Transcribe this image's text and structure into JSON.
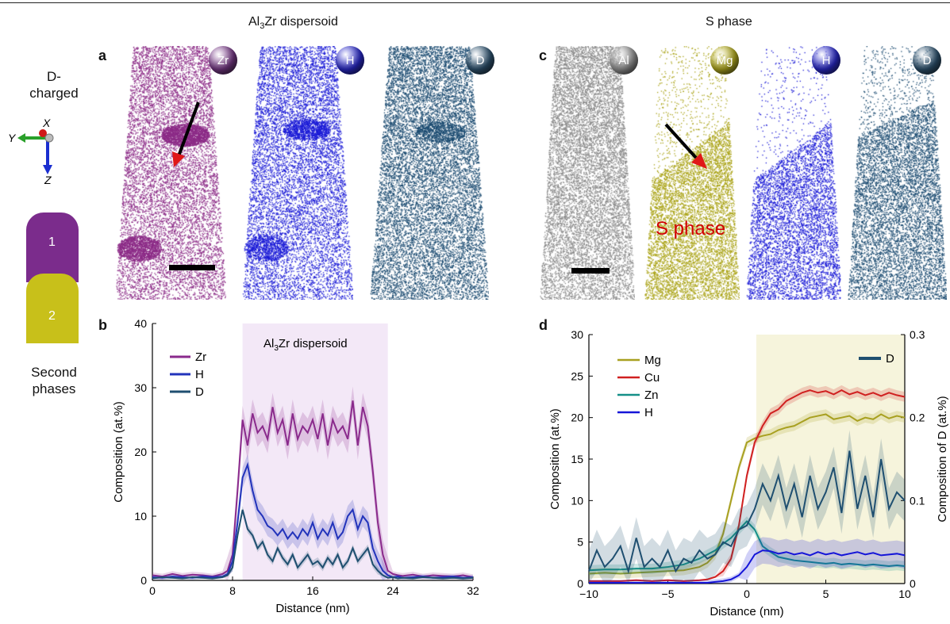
{
  "header": {
    "left_title_main": "Al",
    "left_title_sub": "3",
    "left_title_rest": "Zr dispersoid",
    "right_title": "S phase"
  },
  "panels": {
    "a": "a",
    "b": "b",
    "c": "c",
    "d": "d"
  },
  "sidebar": {
    "d_charged_line1": "D-",
    "d_charged_line2": "charged",
    "axis_x": "X",
    "axis_y": "Y",
    "axis_z": "Z",
    "tip1_label": "1",
    "tip2_label": "2",
    "second_phases_line1": "Second",
    "second_phases_line2": "phases",
    "tip1_color": "#7b2c8c",
    "tip2_color": "#c8c01a"
  },
  "element_badges": {
    "a": [
      "Zr",
      "H",
      "D"
    ],
    "c": [
      "Al",
      "Mg",
      "H",
      "D"
    ],
    "colors": {
      "Zr": "#7a3a8a",
      "H": "#2a2ad0",
      "D": "#2f5573",
      "Al": "#9a9a9a",
      "Mg": "#b8b020"
    }
  },
  "reconstruction_colors": {
    "Zr": "#8b2a86",
    "H": "#1a1ad6",
    "D": "#1a4a70",
    "Al": "#8a8a8a",
    "Mg": "#a9a215"
  },
  "s_phase_label": "S phase",
  "chart_data": [
    {
      "type": "line",
      "panel": "b",
      "annotation_main": "Al",
      "annotation_sub": "3",
      "annotation_rest": "Zr dispersoid",
      "shaded_region": [
        9,
        23.5
      ],
      "xlabel": "Distance (nm)",
      "ylabel": "Composition (at.%)",
      "xlim": [
        0,
        32
      ],
      "ylim": [
        0,
        40
      ],
      "xticks": [
        0,
        8,
        16,
        24,
        32
      ],
      "yticks": [
        0,
        10,
        20,
        30,
        40
      ],
      "legend_position": "top-left",
      "series": [
        {
          "name": "Zr",
          "color": "#8a2a8c",
          "x": [
            0,
            1,
            2,
            3,
            4,
            5,
            6,
            7,
            7.5,
            8,
            8.5,
            9,
            9.5,
            10,
            10.5,
            11,
            11.5,
            12,
            12.5,
            13,
            13.5,
            14,
            14.5,
            15,
            15.5,
            16,
            16.5,
            17,
            17.5,
            18,
            18.5,
            19,
            19.5,
            20,
            20.5,
            21,
            21.5,
            22,
            22.5,
            23,
            23.5,
            24,
            24.5,
            25,
            26,
            27,
            28,
            29,
            30,
            31,
            32
          ],
          "y": [
            0.8,
            0.6,
            1,
            0.7,
            0.9,
            0.8,
            0.6,
            1,
            1.5,
            4,
            14,
            25,
            21,
            26,
            23,
            24,
            22,
            27,
            23,
            25,
            21,
            26,
            22,
            24,
            23,
            25,
            22,
            26,
            21,
            25,
            23,
            24,
            22,
            28,
            21,
            27,
            24,
            17,
            9,
            4,
            1.5,
            1,
            0.8,
            0.7,
            0.9,
            0.6,
            0.8,
            0.7,
            0.6,
            0.8,
            0.5
          ]
        },
        {
          "name": "H",
          "color": "#2233bb",
          "x": [
            0,
            1,
            2,
            3,
            4,
            5,
            6,
            7,
            7.5,
            8,
            8.5,
            9,
            9.5,
            10,
            10.5,
            11,
            11.5,
            12,
            12.5,
            13,
            13.5,
            14,
            14.5,
            15,
            15.5,
            16,
            16.5,
            17,
            17.5,
            18,
            18.5,
            19,
            19.5,
            20,
            20.5,
            21,
            21.5,
            22,
            22.5,
            23,
            23.5,
            24,
            24.5,
            25,
            26,
            27,
            28,
            29,
            30,
            31,
            32
          ],
          "y": [
            0.5,
            0.4,
            0.6,
            0.5,
            0.4,
            0.6,
            0.5,
            0.6,
            1,
            3,
            9,
            16,
            18,
            14,
            11,
            10,
            8.5,
            8,
            7,
            8,
            6.5,
            7.5,
            6.5,
            8,
            7,
            9,
            6.5,
            8,
            7,
            9,
            6.5,
            7.5,
            10,
            11,
            8,
            10,
            9,
            5,
            3,
            1.5,
            0.8,
            0.5,
            0.6,
            0.4,
            0.5,
            0.6,
            0.4,
            0.5,
            0.6,
            0.4,
            0.5
          ]
        },
        {
          "name": "D",
          "color": "#1f4f70",
          "x": [
            0,
            1,
            2,
            3,
            4,
            5,
            6,
            7,
            7.5,
            8,
            8.5,
            9,
            9.5,
            10,
            10.5,
            11,
            11.5,
            12,
            12.5,
            13,
            13.5,
            14,
            14.5,
            15,
            15.5,
            16,
            16.5,
            17,
            17.5,
            18,
            18.5,
            19,
            19.5,
            20,
            20.5,
            21,
            21.5,
            22,
            22.5,
            23,
            23.5,
            24,
            24.5,
            25,
            26,
            27,
            28,
            29,
            30,
            31,
            32
          ],
          "y": [
            0.3,
            0.5,
            0.4,
            0.3,
            0.5,
            0.4,
            0.3,
            0.5,
            0.8,
            2,
            7,
            11,
            8,
            7,
            5,
            6,
            4,
            3,
            5,
            3.5,
            2.5,
            4,
            2,
            3,
            4,
            2.5,
            3,
            2,
            3.5,
            2.5,
            4,
            2,
            3,
            5,
            3,
            4,
            5,
            2.5,
            1.5,
            0.8,
            0.4,
            0.5,
            0.3,
            0.4,
            0.3,
            0.5,
            0.4,
            0.3,
            0.4,
            0.3,
            0.4
          ]
        }
      ]
    },
    {
      "type": "line",
      "panel": "d",
      "shaded_region": [
        0.6,
        10
      ],
      "xlabel": "Distance (nm)",
      "ylabel": "Composition (at.%)",
      "ylabel_right": "Composition of D (at.%)",
      "xlim": [
        -10,
        10
      ],
      "ylim": [
        0,
        30
      ],
      "ylim_right": [
        0,
        0.3
      ],
      "xticks": [
        -10,
        -5,
        0,
        5,
        10
      ],
      "yticks": [
        0,
        5,
        10,
        15,
        20,
        25,
        30
      ],
      "yticks_right": [
        0,
        0.1,
        0.2,
        0.3
      ],
      "legend_position": "top-left",
      "legend_right_position": "top-right",
      "series": [
        {
          "name": "Mg",
          "color": "#a8a020",
          "axis": "left",
          "x": [
            -10,
            -9,
            -8,
            -7,
            -6,
            -5,
            -4,
            -3,
            -2.5,
            -2,
            -1.5,
            -1,
            -0.5,
            0,
            0.5,
            1,
            1.5,
            2,
            2.5,
            3,
            3.5,
            4,
            4.5,
            5,
            5.5,
            6,
            6.5,
            7,
            7.5,
            8,
            8.5,
            9,
            9.5,
            10
          ],
          "y": [
            1.2,
            1.3,
            1.2,
            1.3,
            1.4,
            1.5,
            1.6,
            2,
            2.5,
            3.5,
            6,
            10,
            14,
            17,
            17.5,
            17.8,
            18,
            18.5,
            18.8,
            19,
            19.5,
            20,
            20.2,
            20.4,
            19.8,
            20,
            20.2,
            19.6,
            20,
            19.8,
            20.4,
            19.9,
            20.2,
            20
          ]
        },
        {
          "name": "Cu",
          "color": "#d02020",
          "axis": "left",
          "x": [
            -10,
            -9,
            -8,
            -7,
            -6,
            -5,
            -4,
            -3,
            -2.5,
            -2,
            -1.5,
            -1,
            -0.5,
            0,
            0.5,
            1,
            1.5,
            2,
            2.5,
            3,
            3.5,
            4,
            4.5,
            5,
            5.5,
            6,
            6.5,
            7,
            7.5,
            8,
            8.5,
            9,
            9.5,
            10
          ],
          "y": [
            0.3,
            0.3,
            0.3,
            0.4,
            0.3,
            0.4,
            0.3,
            0.4,
            0.5,
            0.8,
            1.5,
            3,
            7,
            13,
            17,
            19,
            20.5,
            21,
            22,
            22.5,
            23,
            23.3,
            23,
            23.2,
            22.8,
            23.3,
            22.8,
            23.1,
            22.7,
            23,
            22.6,
            23,
            22.7,
            22.5
          ]
        },
        {
          "name": "Zn",
          "color": "#159088",
          "axis": "left",
          "x": [
            -10,
            -9,
            -8,
            -7,
            -6,
            -5,
            -4,
            -3,
            -2.5,
            -2,
            -1.5,
            -1,
            -0.5,
            0,
            0.5,
            1,
            1.5,
            2,
            2.5,
            3,
            3.5,
            4,
            4.5,
            5,
            5.5,
            6,
            6.5,
            7,
            7.5,
            8,
            8.5,
            9,
            9.5,
            10
          ],
          "y": [
            1.6,
            1.7,
            1.7,
            1.8,
            1.8,
            2,
            2.3,
            3,
            3.5,
            4,
            4.8,
            5.5,
            6.5,
            7.5,
            6.5,
            4.5,
            3.8,
            3.2,
            3,
            2.8,
            2.7,
            2.6,
            2.5,
            2.4,
            2.5,
            2.3,
            2.4,
            2.3,
            2.2,
            2.3,
            2.2,
            2.1,
            2.2,
            2.1
          ]
        },
        {
          "name": "H",
          "color": "#1515d8",
          "axis": "left",
          "x": [
            -10,
            -9,
            -8,
            -7,
            -6,
            -5,
            -4,
            -3,
            -2.5,
            -2,
            -1.5,
            -1,
            -0.5,
            0,
            0.5,
            1,
            1.5,
            2,
            2.5,
            3,
            3.5,
            4,
            4.5,
            5,
            5.5,
            6,
            6.5,
            7,
            7.5,
            8,
            8.5,
            9,
            9.5,
            10
          ],
          "y": [
            0.1,
            0.1,
            0.1,
            0.1,
            0.1,
            0.1,
            0.1,
            0.1,
            0.1,
            0.2,
            0.3,
            0.5,
            1,
            2,
            3.5,
            4,
            3.9,
            3.6,
            3.8,
            3.5,
            3.7,
            3.4,
            3.8,
            3.5,
            3.7,
            3.4,
            3.6,
            3.8,
            3.5,
            3.7,
            3.4,
            3.5,
            3.6,
            3.4
          ]
        },
        {
          "name": "D",
          "color": "#1f4f70",
          "axis": "right",
          "x": [
            -10,
            -9.5,
            -9,
            -8.5,
            -8,
            -7.5,
            -7,
            -6.5,
            -6,
            -5.5,
            -5,
            -4.5,
            -4,
            -3.5,
            -3,
            -2.5,
            -2,
            -1.5,
            -1,
            -0.5,
            0,
            0.5,
            1,
            1.5,
            2,
            2.5,
            3,
            3.5,
            4,
            4.5,
            5,
            5.5,
            6,
            6.5,
            7,
            7.5,
            8,
            8.5,
            9,
            9.5,
            10
          ],
          "y": [
            0.015,
            0.04,
            0.02,
            0.03,
            0.045,
            0.015,
            0.055,
            0.02,
            0.03,
            0.02,
            0.04,
            0.015,
            0.03,
            0.025,
            0.04,
            0.03,
            0.035,
            0.05,
            0.045,
            0.065,
            0.07,
            0.09,
            0.12,
            0.1,
            0.13,
            0.09,
            0.12,
            0.08,
            0.13,
            0.09,
            0.11,
            0.14,
            0.085,
            0.16,
            0.09,
            0.13,
            0.08,
            0.15,
            0.09,
            0.11,
            0.1
          ]
        }
      ]
    }
  ]
}
